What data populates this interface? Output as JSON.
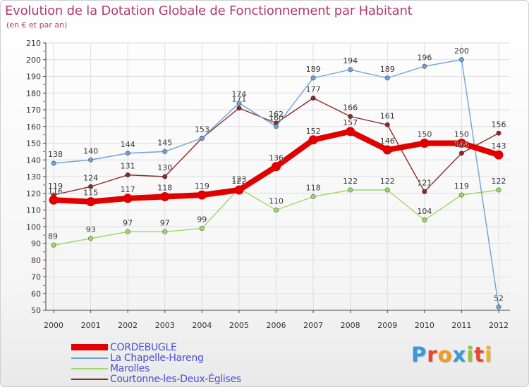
{
  "title": "Evolution de la Dotation Globale de Fonctionnement par Habitant",
  "subtitle": "(en € et par an)",
  "logo": {
    "letters": [
      "P",
      "r",
      "o",
      "x",
      "i",
      "t",
      "i"
    ],
    "colors": [
      "#3a9ad9",
      "#e8462e",
      "#f29a1b",
      "#3a9ad9",
      "#8cc63f",
      "#e8462e",
      "#f2b31b"
    ]
  },
  "chart_data": {
    "type": "line",
    "title": "Evolution de la Dotation Globale de Fonctionnement par Habitant",
    "subtitle": "(en € et par an)",
    "xlabel": "",
    "ylabel": "",
    "x": [
      "2000",
      "2001",
      "2002",
      "2003",
      "2004",
      "2005",
      "2006",
      "2007",
      "2008",
      "2009",
      "2010",
      "2011",
      "2012"
    ],
    "ylim": [
      50,
      210
    ],
    "yticks": [
      "50",
      "60",
      "70",
      "80",
      "90",
      "100",
      "110",
      "120",
      "130",
      "140",
      "150",
      "160",
      "170",
      "180",
      "190",
      "200",
      "210"
    ],
    "grid": true,
    "legend_position": "bottom-left",
    "series": [
      {
        "name": "CORDEBUGLE",
        "color": "#e00000",
        "weight": "heavy",
        "values": [
          116,
          115,
          117,
          118,
          119,
          122,
          136,
          152,
          157,
          146,
          150,
          150,
          143
        ],
        "labels": [
          "116",
          "115",
          "117",
          "118",
          "119",
          "122",
          "136",
          "152",
          "157",
          "146",
          "150",
          "150",
          "143"
        ]
      },
      {
        "name": "La Chapelle-Hareng",
        "color": "#6ea3d8",
        "weight": "thin",
        "values": [
          138,
          140,
          144,
          145,
          153,
          174,
          160,
          189,
          194,
          189,
          196,
          200,
          52
        ],
        "labels": [
          "138",
          "140",
          "144",
          "145",
          "153",
          "174",
          "160",
          "189",
          "194",
          "189",
          "196",
          "200",
          "52"
        ]
      },
      {
        "name": "Marolles",
        "color": "#9ed86a",
        "weight": "thin",
        "values": [
          89,
          93,
          97,
          97,
          99,
          123,
          110,
          118,
          122,
          122,
          104,
          119,
          122
        ],
        "labels": [
          "89",
          "93",
          "97",
          "97",
          "99",
          "123",
          "110",
          "118",
          "122",
          "122",
          "104",
          "119",
          "122"
        ]
      },
      {
        "name": "Courtonne-les-Deux-Églises",
        "color": "#8b2a2a",
        "weight": "thin",
        "values": [
          119,
          124,
          131,
          130,
          153,
          171,
          162,
          177,
          166,
          161,
          121,
          144,
          156
        ],
        "labels": [
          "119",
          "124",
          "131",
          "130",
          "153",
          "171",
          "162",
          "177",
          "166",
          "161",
          "121",
          "144",
          "156"
        ]
      }
    ]
  }
}
